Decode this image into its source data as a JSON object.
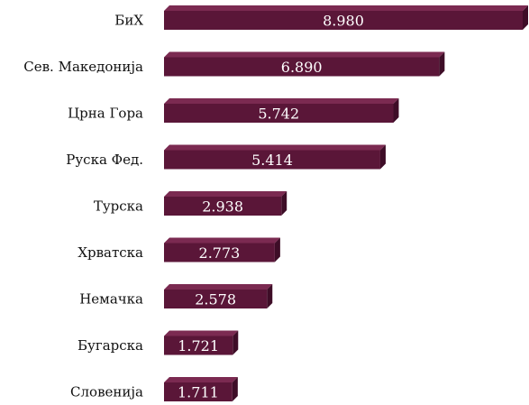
{
  "chart_data": {
    "type": "bar",
    "orientation": "horizontal",
    "categories": [
      "БиХ",
      "Сев. Македонија",
      "Црна Гора",
      "Руска Фед.",
      "Турска",
      "Хрватска",
      "Немачка",
      "Бугарска",
      "Словенија"
    ],
    "values": [
      8980,
      6890,
      5742,
      5414,
      2938,
      2773,
      2578,
      1721,
      1711
    ],
    "value_labels": [
      "8.980",
      "6.890",
      "5.742",
      "5.414",
      "2.938",
      "2.773",
      "2.578",
      "1.721",
      "1.711"
    ],
    "title": "",
    "xlabel": "",
    "ylabel": "",
    "xlim": [
      0,
      8980
    ],
    "grid": false,
    "legend": false
  },
  "colors": {
    "bar_front": "#5a1638",
    "bar_top": "#7b2a51",
    "bar_side": "#3e0d27",
    "value_text": "#ffffff",
    "category_text": "#111111"
  }
}
